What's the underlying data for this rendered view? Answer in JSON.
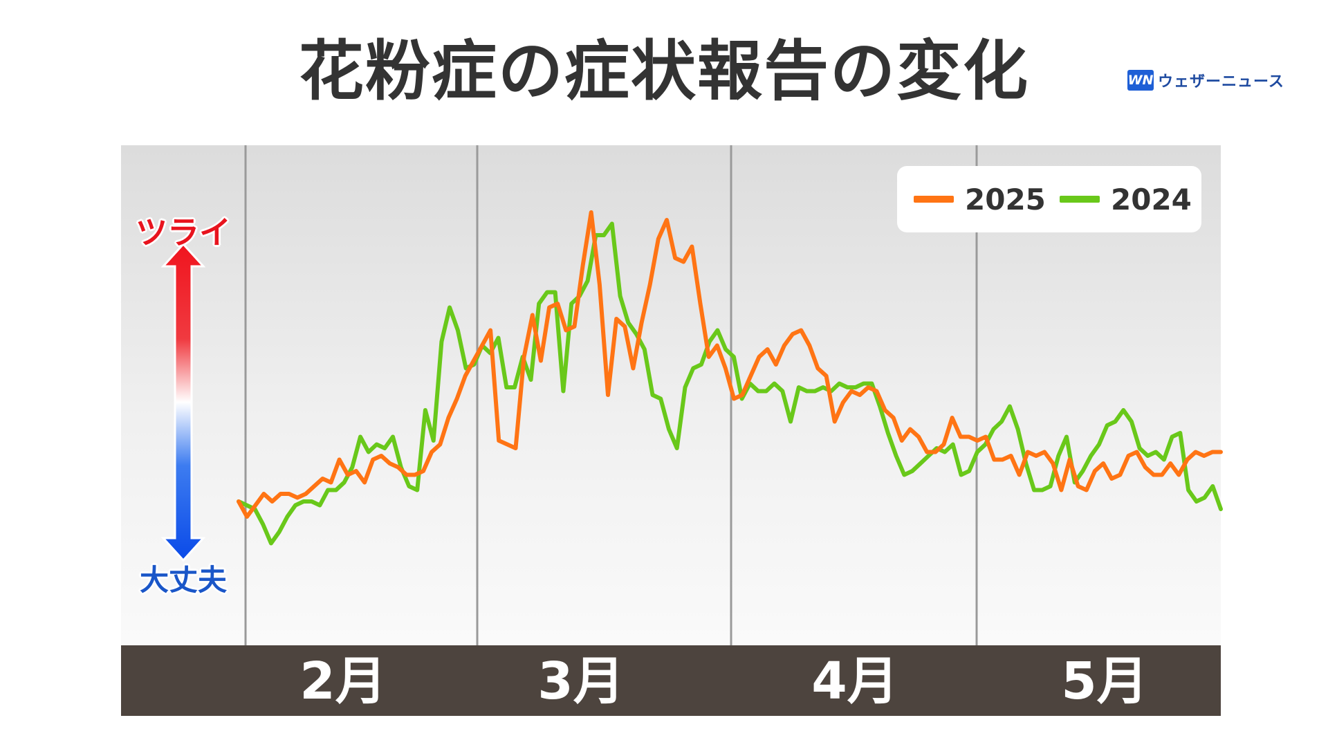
{
  "title": "花粉症の症状報告の変化",
  "brand": {
    "logo_text": "WN",
    "name": "ウェザーニュース"
  },
  "scale": {
    "top_label": "ツライ",
    "bottom_label": "大丈夫",
    "top_color": "#e8141e",
    "bottom_color": "#1a56c8"
  },
  "months": [
    "2月",
    "3月",
    "4月",
    "5月"
  ],
  "legend": [
    {
      "name": "2025",
      "color": "#ff7414"
    },
    {
      "name": "2024",
      "color": "#69c81a"
    }
  ],
  "chart_data": {
    "type": "line",
    "title": "花粉症の症状報告の変化",
    "xlabel": "",
    "ylabel": "",
    "x_unit": "day index from late January",
    "xlim": [
      0,
      120
    ],
    "ylim": [
      0,
      100
    ],
    "grid": "vertical month separators",
    "legend_position": "top-right",
    "month_boundaries": [
      0.5,
      29,
      60,
      90
    ],
    "series": [
      {
        "name": "2025",
        "color": "#ff7414",
        "values": [
          20,
          16,
          19,
          22,
          20,
          22,
          22,
          21,
          22,
          24,
          26,
          25,
          31,
          27,
          28,
          25,
          31,
          32,
          30,
          29,
          27,
          27,
          28,
          33,
          35,
          42,
          47,
          53,
          57,
          61,
          65,
          36,
          35,
          34,
          58,
          69,
          57,
          71,
          72,
          65,
          66,
          82,
          96,
          77,
          48,
          68,
          66,
          55,
          67,
          77,
          89,
          94,
          84,
          83,
          87,
          72,
          58,
          61,
          55,
          47,
          48,
          53,
          58,
          60,
          56,
          61,
          64,
          65,
          61,
          55,
          53,
          41,
          46,
          49,
          48,
          50,
          49,
          44,
          42,
          36,
          39,
          37,
          33,
          33,
          35,
          42,
          37,
          37,
          36,
          37,
          31,
          31,
          32,
          27,
          33,
          32,
          33,
          30,
          23,
          31,
          24,
          23,
          28,
          30,
          26,
          27,
          32,
          33,
          29,
          27,
          27,
          30,
          27,
          31,
          33,
          32,
          33,
          33
        ]
      },
      {
        "name": "2024",
        "color": "#69c81a",
        "values": [
          20,
          19,
          18,
          14,
          9,
          12,
          16,
          19,
          20,
          20,
          19,
          23,
          23,
          25,
          29,
          37,
          33,
          35,
          34,
          37,
          29,
          24,
          23,
          44,
          36,
          62,
          71,
          65,
          55,
          56,
          61,
          59,
          63,
          50,
          50,
          58,
          52,
          72,
          75,
          75,
          49,
          72,
          74,
          78,
          90,
          90,
          93,
          74,
          67,
          64,
          60,
          48,
          47,
          39,
          34,
          50,
          55,
          56,
          62,
          65,
          60,
          58,
          47,
          51,
          49,
          49,
          51,
          49,
          41,
          50,
          49,
          49,
          50,
          49,
          51,
          50,
          50,
          51,
          51,
          45,
          38,
          32,
          27,
          28,
          30,
          32,
          34,
          33,
          35,
          27,
          28,
          33,
          35,
          39,
          41,
          45,
          39,
          30,
          23,
          23,
          24,
          32,
          37,
          25,
          28,
          32,
          35,
          40,
          41,
          44,
          41,
          34,
          32,
          33,
          31,
          37,
          38,
          23,
          20,
          21,
          24,
          18
        ]
      }
    ]
  }
}
